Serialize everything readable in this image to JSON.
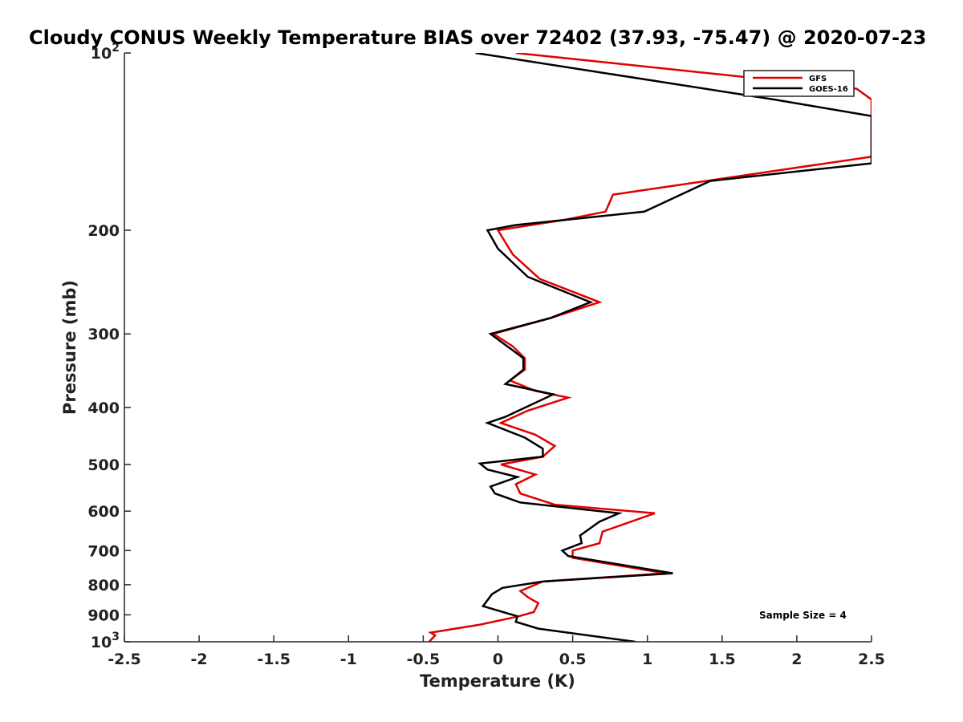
{
  "chart_data": {
    "type": "line",
    "title": "Cloudy CONUS Weekly Temperature BIAS over 72402 (37.93, -75.47) @ 2020-07-23",
    "xlabel": "Temperature (K)",
    "ylabel": "Pressure (mb)",
    "xlim": [
      -2.5,
      2.5
    ],
    "ylim": [
      100,
      1000
    ],
    "y_scale": "log",
    "y_reversed": true,
    "grid": false,
    "legend_position": "top-right",
    "x_ticks": [
      "-2.5",
      "-2",
      "-1.5",
      "-1",
      "-0.5",
      "0",
      "0.5",
      "1",
      "1.5",
      "2",
      "2.5"
    ],
    "y_ticks": [
      {
        "value": 100,
        "base": "10",
        "exp": "2"
      },
      {
        "value": 200,
        "label": "200"
      },
      {
        "value": 300,
        "label": "300"
      },
      {
        "value": 400,
        "label": "400"
      },
      {
        "value": 500,
        "label": "500"
      },
      {
        "value": 600,
        "label": "600"
      },
      {
        "value": 700,
        "label": "700"
      },
      {
        "value": 800,
        "label": "800"
      },
      {
        "value": 900,
        "label": "900"
      },
      {
        "value": 1000,
        "base": "10",
        "exp": "3"
      }
    ],
    "series": [
      {
        "name": "GFS",
        "color": "#e00000",
        "points": [
          [
            0.12,
            100
          ],
          [
            2.4,
            115
          ],
          [
            2.5,
            120
          ],
          [
            2.5,
            150
          ],
          [
            0.77,
            174
          ],
          [
            0.72,
            186
          ],
          [
            0.45,
            192
          ],
          [
            0.0,
            200
          ],
          [
            0.1,
            220
          ],
          [
            0.28,
            242
          ],
          [
            0.68,
            265
          ],
          [
            0.35,
            282
          ],
          [
            -0.03,
            300
          ],
          [
            0.1,
            315
          ],
          [
            0.18,
            330
          ],
          [
            0.18,
            345
          ],
          [
            0.08,
            360
          ],
          [
            0.25,
            375
          ],
          [
            0.47,
            385
          ],
          [
            0.2,
            405
          ],
          [
            0.02,
            425
          ],
          [
            0.25,
            445
          ],
          [
            0.38,
            465
          ],
          [
            0.3,
            485
          ],
          [
            0.02,
            500
          ],
          [
            0.25,
            520
          ],
          [
            0.12,
            540
          ],
          [
            0.15,
            560
          ],
          [
            0.38,
            585
          ],
          [
            1.05,
            605
          ],
          [
            0.7,
            650
          ],
          [
            0.68,
            680
          ],
          [
            0.5,
            700
          ],
          [
            0.5,
            720
          ],
          [
            1.12,
            765
          ],
          [
            0.3,
            790
          ],
          [
            0.15,
            820
          ],
          [
            0.2,
            840
          ],
          [
            0.27,
            860
          ],
          [
            0.24,
            890
          ],
          [
            0.14,
            905
          ],
          [
            -0.12,
            935
          ],
          [
            -0.45,
            965
          ],
          [
            -0.42,
            975
          ],
          [
            -0.46,
            1000
          ]
        ]
      },
      {
        "name": "GOES-16",
        "color": "#000000",
        "points": [
          [
            -0.15,
            100
          ],
          [
            1.85,
            120
          ],
          [
            2.5,
            128
          ],
          [
            2.5,
            154
          ],
          [
            1.42,
            165
          ],
          [
            0.98,
            186
          ],
          [
            0.12,
            196
          ],
          [
            -0.07,
            200
          ],
          [
            0.0,
            215
          ],
          [
            0.2,
            240
          ],
          [
            0.62,
            265
          ],
          [
            0.35,
            282
          ],
          [
            -0.05,
            300
          ],
          [
            0.1,
            320
          ],
          [
            0.17,
            330
          ],
          [
            0.17,
            345
          ],
          [
            0.05,
            365
          ],
          [
            0.37,
            380
          ],
          [
            0.05,
            415
          ],
          [
            -0.07,
            425
          ],
          [
            0.18,
            450
          ],
          [
            0.3,
            470
          ],
          [
            0.3,
            485
          ],
          [
            -0.12,
            498
          ],
          [
            -0.07,
            510
          ],
          [
            0.13,
            525
          ],
          [
            -0.05,
            545
          ],
          [
            -0.02,
            560
          ],
          [
            0.15,
            580
          ],
          [
            0.81,
            605
          ],
          [
            0.68,
            625
          ],
          [
            0.55,
            660
          ],
          [
            0.56,
            680
          ],
          [
            0.43,
            700
          ],
          [
            0.47,
            715
          ],
          [
            1.17,
            765
          ],
          [
            0.3,
            790
          ],
          [
            0.03,
            810
          ],
          [
            -0.04,
            830
          ],
          [
            -0.1,
            870
          ],
          [
            0.13,
            905
          ],
          [
            0.12,
            925
          ],
          [
            0.27,
            950
          ],
          [
            0.92,
            1000
          ]
        ]
      }
    ],
    "annotations": [
      "Sample Size = 4"
    ]
  }
}
